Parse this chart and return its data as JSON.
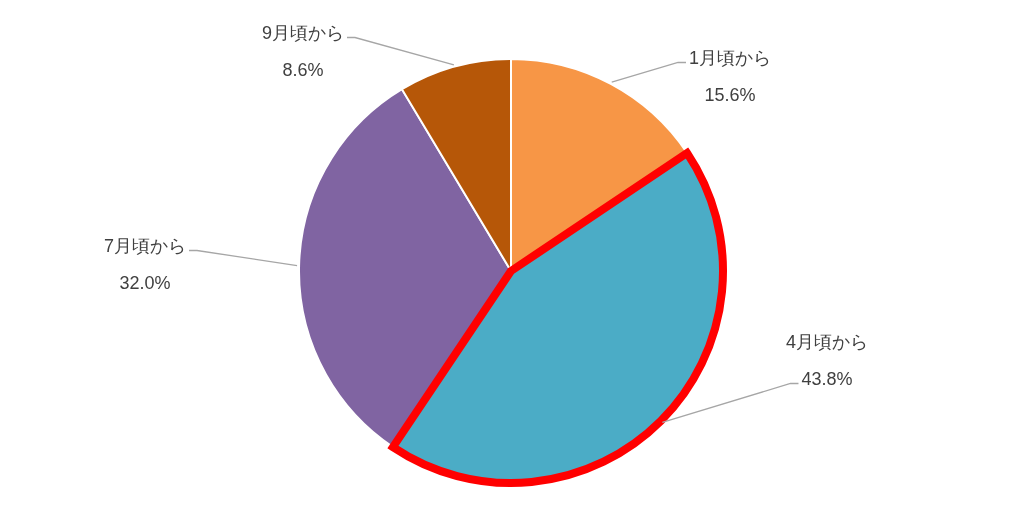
{
  "chart_data": {
    "type": "pie",
    "categories": [
      "1月頃から",
      "4月頃から",
      "7月頃から",
      "9月頃から"
    ],
    "values": [
      15.6,
      43.8,
      32.0,
      8.6
    ],
    "colors": [
      "#f79646",
      "#4bacc6",
      "#8064a2",
      "#b65708"
    ],
    "value_labels": [
      "15.6%",
      "43.8%",
      "32.0%",
      "8.6%"
    ]
  }
}
